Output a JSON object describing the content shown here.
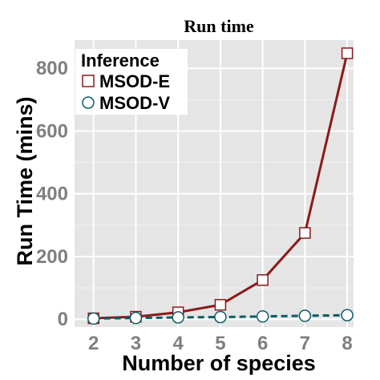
{
  "chart_data": {
    "type": "line",
    "title": "Run time",
    "xlabel": "Number of species",
    "ylabel": "Run Time (mins)",
    "x": [
      2,
      3,
      4,
      5,
      6,
      7,
      8
    ],
    "xlim": [
      1.55,
      8.15
    ],
    "ylim": [
      -25,
      890
    ],
    "yticks": [
      0,
      200,
      400,
      600,
      800
    ],
    "grid": true,
    "legend": {
      "title": "Inference",
      "placement": "top-left"
    },
    "series": [
      {
        "name": "MSOD-E",
        "values": [
          3,
          8,
          22,
          46,
          125,
          275,
          848
        ],
        "color": "#8b1a1a",
        "marker": "square",
        "line_style": "solid"
      },
      {
        "name": "MSOD-V",
        "values": [
          2,
          4,
          6,
          7,
          9,
          11,
          13
        ],
        "color": "#0e5c63",
        "marker": "circle",
        "line_style": "dashed"
      }
    ]
  }
}
